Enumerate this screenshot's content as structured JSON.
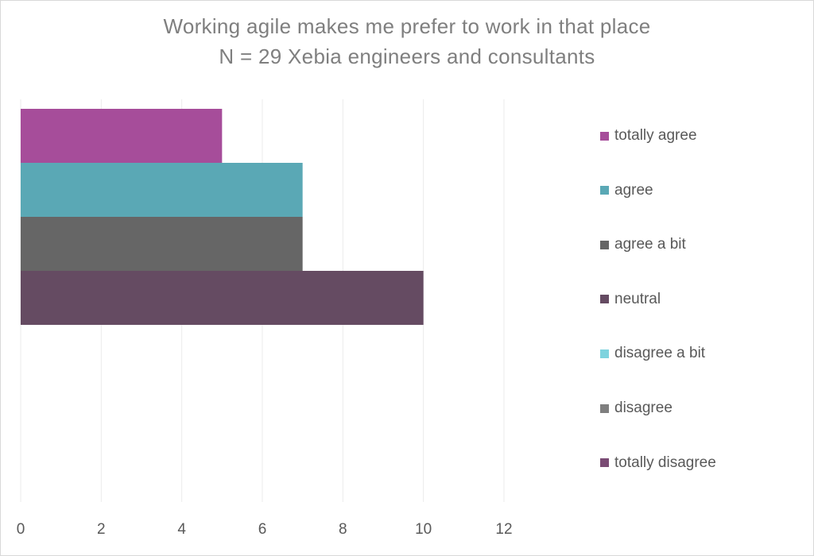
{
  "chart_data": {
    "type": "bar",
    "orientation": "horizontal",
    "title": "Working agile makes me prefer to work in that place",
    "subtitle": "N = 29 Xebia engineers and consultants",
    "xlabel": "",
    "ylabel": "",
    "xlim": [
      0,
      12
    ],
    "x_ticks": [
      "0",
      "2",
      "4",
      "6",
      "8",
      "10",
      "12"
    ],
    "grid": true,
    "legend_position": "right",
    "series": [
      {
        "name": "totally agree",
        "value": 5,
        "color": "#a64d9a"
      },
      {
        "name": "agree",
        "value": 7,
        "color": "#5aa8b5"
      },
      {
        "name": "agree a bit",
        "value": 7,
        "color": "#666666"
      },
      {
        "name": "neutral",
        "value": 10,
        "color": "#654b62"
      },
      {
        "name": "disagree a bit",
        "value": 0,
        "color": "#7ed3de"
      },
      {
        "name": "disagree",
        "value": 0,
        "color": "#7f7f7f"
      },
      {
        "name": "totally disagree",
        "value": 0,
        "color": "#7a4b74"
      }
    ]
  }
}
